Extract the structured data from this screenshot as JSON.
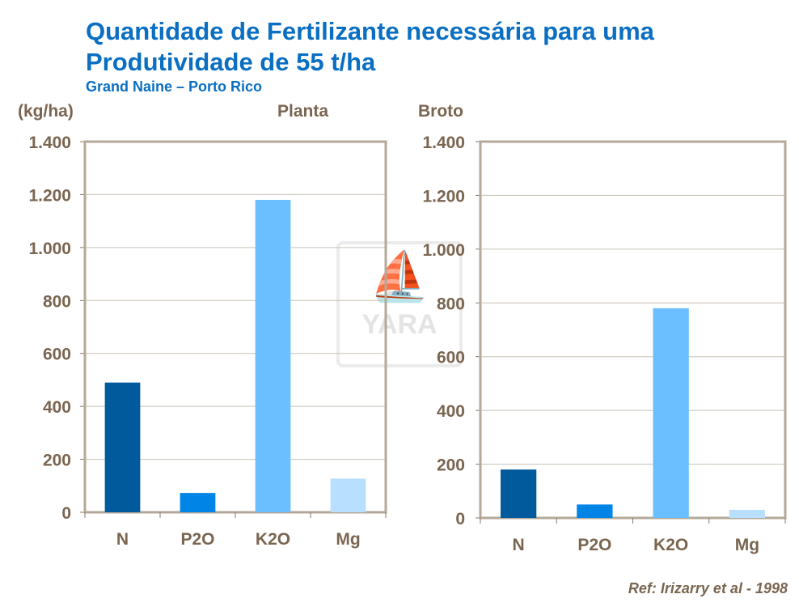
{
  "title_line1": "Quantidade de Fertilizante necessária para uma",
  "title_line2": "Produtividade de 55 t/ha",
  "subtitle": "Grand Naine – Porto Rico",
  "unit_label": "(kg/ha)",
  "reference": "Ref: Irizarry et al - 1998",
  "watermark_text": "YARA",
  "colors": {
    "N": "#005a9c",
    "P2O": "#0085e6",
    "K2O": "#6bbfff",
    "Mg": "#b8dfff",
    "axis_text": "#7a6550",
    "title": "#0a6fc2",
    "frame": "#b4a898"
  },
  "chart_data": [
    {
      "type": "bar",
      "title": "Planta",
      "ylabel": "(kg/ha)",
      "categories": [
        "N",
        "P2O",
        "K2O",
        "Mg"
      ],
      "values": [
        490,
        73,
        1180,
        127
      ],
      "ylim": [
        0,
        1400
      ],
      "yticks": [
        0,
        200,
        400,
        600,
        800,
        1000,
        1200,
        1400
      ],
      "ytick_labels": [
        "0",
        "200",
        "400",
        "600",
        "800",
        "1.000",
        "1.200",
        "1.400"
      ],
      "grid": true
    },
    {
      "type": "bar",
      "title": "Broto",
      "categories": [
        "N",
        "P2O",
        "K2O",
        "Mg"
      ],
      "values": [
        180,
        50,
        780,
        30
      ],
      "ylim": [
        0,
        1400
      ],
      "yticks": [
        0,
        200,
        400,
        600,
        800,
        1000,
        1200,
        1400
      ],
      "ytick_labels": [
        "0",
        "200",
        "400",
        "600",
        "800",
        "1.000",
        "1.200",
        "1.400"
      ],
      "grid": true
    }
  ]
}
